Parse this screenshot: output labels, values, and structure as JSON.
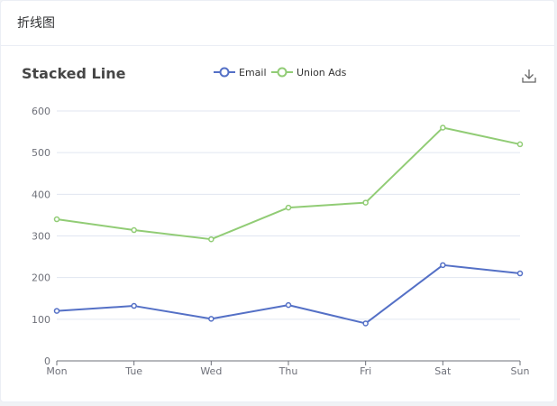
{
  "panel": {
    "title": "折线图"
  },
  "toolbox": {
    "icon": "download-icon"
  },
  "colors": {
    "email": "#5470c6",
    "union_ads": "#91cc75",
    "grid": "#e0e6f1",
    "axis": "#6e7079"
  },
  "chart_data": {
    "type": "line",
    "title": "Stacked Line",
    "categories": [
      "Mon",
      "Tue",
      "Wed",
      "Thu",
      "Fri",
      "Sat",
      "Sun"
    ],
    "series": [
      {
        "name": "Email",
        "values": [
          120,
          132,
          101,
          134,
          90,
          230,
          210
        ]
      },
      {
        "name": "Union Ads",
        "values": [
          340,
          314,
          292,
          368,
          380,
          560,
          520
        ]
      }
    ],
    "ylim": [
      0,
      600
    ],
    "yticks": [
      0,
      100,
      200,
      300,
      400,
      500,
      600
    ],
    "xlabel": "",
    "ylabel": "",
    "grid": true,
    "legend": "top-center"
  }
}
